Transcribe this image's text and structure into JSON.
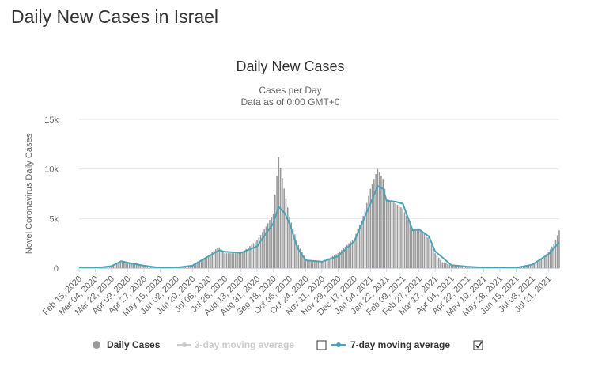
{
  "page": {
    "title": "Daily New Cases in Israel"
  },
  "colors": {
    "bars": "#999999",
    "line": "#4aa3b8",
    "grid": "#e6e6e6",
    "legend_disabled": "#cccccc"
  },
  "chart_data": {
    "type": "bar",
    "title": "Daily New Cases",
    "subtitle": "Cases per Day",
    "subtitle2": "Data as of 0:00 GMT+0",
    "ylabel": "Novel Coronavirus Daily Cases",
    "ylim": [
      0,
      15000
    ],
    "yticks": [
      0,
      5000,
      10000,
      15000
    ],
    "ytick_labels": [
      "0",
      "5k",
      "10k",
      "15k"
    ],
    "x_start": "Feb 15, 2020",
    "x_end": "Aug 02, 2021",
    "xtick_labels": [
      "Feb 15, 2020",
      "Mar 04, 2020",
      "Mar 22, 2020",
      "Apr 09, 2020",
      "Apr 27, 2020",
      "May 15, 2020",
      "Jun 02, 2020",
      "Jun 20, 2020",
      "Jul 08, 2020",
      "Jul 26, 2020",
      "Aug 13, 2020",
      "Aug 31, 2020",
      "Sep 18, 2020",
      "Oct 06, 2020",
      "Oct 24, 2020",
      "Nov 11, 2020",
      "Nov 29, 2020",
      "Dec 17, 2020",
      "Jan 04, 2021",
      "Jan 22, 2021",
      "Feb 09, 2021",
      "Feb 27, 2021",
      "Mar 17, 2021",
      "Apr 04, 2021",
      "Apr 22, 2021",
      "May 10, 2021",
      "May 28, 2021",
      "Jun 15, 2021",
      "Jul 03, 2021",
      "Jul 21, 2021"
    ],
    "grid": true,
    "legend_position": "bottom",
    "series": [
      {
        "name": "Daily Cases",
        "type": "bar",
        "points": [
          [
            "Feb 15, 2020",
            0
          ],
          [
            "Mar 04, 2020",
            10
          ],
          [
            "Mar 15, 2020",
            60
          ],
          [
            "Mar 22, 2020",
            200
          ],
          [
            "Mar 28, 2020",
            450
          ],
          [
            "Apr 02, 2020",
            700
          ],
          [
            "Apr 09, 2020",
            550
          ],
          [
            "Apr 20, 2020",
            350
          ],
          [
            "Apr 27, 2020",
            250
          ],
          [
            "May 15, 2020",
            30
          ],
          [
            "Jun 02, 2020",
            60
          ],
          [
            "Jun 20, 2020",
            250
          ],
          [
            "Jun 28, 2020",
            700
          ],
          [
            "Jul 08, 2020",
            1200
          ],
          [
            "Jul 14, 2020",
            1800
          ],
          [
            "Jul 20, 2020",
            2100
          ],
          [
            "Jul 26, 2020",
            1500
          ],
          [
            "Aug 13, 2020",
            1500
          ],
          [
            "Aug 31, 2020",
            2800
          ],
          [
            "Sep 10, 2020",
            4200
          ],
          [
            "Sep 18, 2020",
            5500
          ],
          [
            "Sep 24, 2020",
            11200
          ],
          [
            "Oct 01, 2020",
            7500
          ],
          [
            "Oct 06, 2020",
            5200
          ],
          [
            "Oct 15, 2020",
            2500
          ],
          [
            "Oct 24, 2020",
            900
          ],
          [
            "Nov 11, 2020",
            600
          ],
          [
            "Nov 29, 2020",
            1500
          ],
          [
            "Dec 17, 2020",
            3000
          ],
          [
            "Dec 28, 2020",
            5500
          ],
          [
            "Jan 04, 2021",
            8000
          ],
          [
            "Jan 12, 2021",
            10000
          ],
          [
            "Jan 18, 2021",
            9000
          ],
          [
            "Jan 22, 2021",
            7000
          ],
          [
            "Feb 01, 2021",
            6500
          ],
          [
            "Feb 09, 2021",
            6000
          ],
          [
            "Feb 20, 2021",
            4000
          ],
          [
            "Feb 27, 2021",
            4000
          ],
          [
            "Mar 10, 2021",
            3000
          ],
          [
            "Mar 17, 2021",
            1500
          ],
          [
            "Mar 25, 2021",
            600
          ],
          [
            "Apr 04, 2021",
            300
          ],
          [
            "Apr 22, 2021",
            120
          ],
          [
            "May 10, 2021",
            40
          ],
          [
            "May 28, 2021",
            20
          ],
          [
            "Jun 15, 2021",
            30
          ],
          [
            "Jun 25, 2021",
            150
          ],
          [
            "Jul 03, 2021",
            400
          ],
          [
            "Jul 13, 2021",
            900
          ],
          [
            "Jul 21, 2021",
            1600
          ],
          [
            "Jul 28, 2021",
            2600
          ],
          [
            "Aug 02, 2021",
            3800
          ]
        ]
      },
      {
        "name": "3-day moving average",
        "type": "line",
        "visible": false
      },
      {
        "name": "7-day moving average",
        "type": "line",
        "visible": true,
        "points": [
          [
            "Feb 15, 2020",
            0
          ],
          [
            "Mar 04, 2020",
            10
          ],
          [
            "Mar 22, 2020",
            200
          ],
          [
            "Apr 02, 2020",
            700
          ],
          [
            "Apr 09, 2020",
            550
          ],
          [
            "Apr 27, 2020",
            250
          ],
          [
            "May 15, 2020",
            30
          ],
          [
            "Jun 02, 2020",
            50
          ],
          [
            "Jun 20, 2020",
            250
          ],
          [
            "Jul 08, 2020",
            1200
          ],
          [
            "Jul 20, 2020",
            1800
          ],
          [
            "Jul 26, 2020",
            1650
          ],
          [
            "Aug 13, 2020",
            1550
          ],
          [
            "Aug 31, 2020",
            2200
          ],
          [
            "Sep 10, 2020",
            3500
          ],
          [
            "Sep 18, 2020",
            4500
          ],
          [
            "Sep 24, 2020",
            6200
          ],
          [
            "Oct 01, 2020",
            5500
          ],
          [
            "Oct 06, 2020",
            4500
          ],
          [
            "Oct 15, 2020",
            2000
          ],
          [
            "Oct 24, 2020",
            800
          ],
          [
            "Nov 11, 2020",
            650
          ],
          [
            "Nov 29, 2020",
            1200
          ],
          [
            "Dec 17, 2020",
            2700
          ],
          [
            "Jan 04, 2021",
            6500
          ],
          [
            "Jan 12, 2021",
            8300
          ],
          [
            "Jan 18, 2021",
            8000
          ],
          [
            "Jan 22, 2021",
            6800
          ],
          [
            "Feb 01, 2021",
            6700
          ],
          [
            "Feb 09, 2021",
            6500
          ],
          [
            "Feb 20, 2021",
            3800
          ],
          [
            "Feb 27, 2021",
            3900
          ],
          [
            "Mar 10, 2021",
            3200
          ],
          [
            "Mar 17, 2021",
            1700
          ],
          [
            "Apr 04, 2021",
            300
          ],
          [
            "Apr 22, 2021",
            150
          ],
          [
            "May 10, 2021",
            50
          ],
          [
            "May 28, 2021",
            20
          ],
          [
            "Jun 15, 2021",
            30
          ],
          [
            "Jul 03, 2021",
            350
          ],
          [
            "Jul 21, 2021",
            1400
          ],
          [
            "Aug 02, 2021",
            2600
          ]
        ]
      }
    ]
  }
}
